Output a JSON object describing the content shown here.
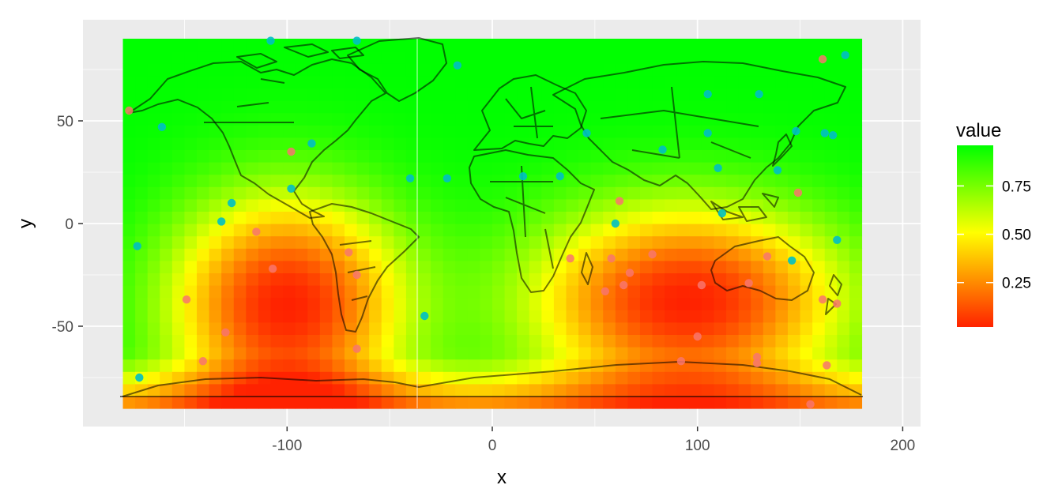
{
  "chart_data": {
    "type": "heatmap",
    "title": "",
    "xlabel": "x",
    "ylabel": "y",
    "xlim": [
      -180,
      180
    ],
    "ylim": [
      -90,
      90
    ],
    "x_ticks": [
      -100,
      0,
      100,
      200
    ],
    "x_tick_labels": [
      "-100",
      "0",
      "100",
      "200"
    ],
    "y_ticks": [
      -50,
      0,
      50
    ],
    "y_tick_labels": [
      "-50",
      "0",
      "50"
    ],
    "grid": true,
    "panel_background": "#ebebeb",
    "legend": {
      "title": "value",
      "placement": "right",
      "breaks": [
        0.25,
        0.5,
        0.75
      ],
      "break_labels": [
        "0.25",
        "0.50",
        "0.75"
      ],
      "range": [
        0.02,
        0.96
      ],
      "colors": [
        "#ff2200",
        "#ffff00",
        "#00ff00"
      ]
    },
    "heatmap": {
      "description_values": "interpolated value field over lon/lat",
      "low_centers": [
        {
          "x": -100,
          "y": -40,
          "value": 0.02
        },
        {
          "x": 95,
          "y": -38,
          "value": 0.02
        }
      ]
    },
    "overlay": "world country outlines",
    "points": {
      "high": [
        {
          "x": -108,
          "y": 89
        },
        {
          "x": -66,
          "y": 89
        },
        {
          "x": -17,
          "y": 77
        },
        {
          "x": 172,
          "y": 82
        },
        {
          "x": -161,
          "y": 47
        },
        {
          "x": -88,
          "y": 39
        },
        {
          "x": 105,
          "y": 63
        },
        {
          "x": 130,
          "y": 63
        },
        {
          "x": 46,
          "y": 44
        },
        {
          "x": 105,
          "y": 44
        },
        {
          "x": 148,
          "y": 45
        },
        {
          "x": 162,
          "y": 44
        },
        {
          "x": 166,
          "y": 43
        },
        {
          "x": 83,
          "y": 36
        },
        {
          "x": 110,
          "y": 27
        },
        {
          "x": 139,
          "y": 26
        },
        {
          "x": -40,
          "y": 22
        },
        {
          "x": -22,
          "y": 22
        },
        {
          "x": 15,
          "y": 23
        },
        {
          "x": 33,
          "y": 23
        },
        {
          "x": -98,
          "y": 17
        },
        {
          "x": -127,
          "y": 10
        },
        {
          "x": -132,
          "y": 1
        },
        {
          "x": 60,
          "y": 0
        },
        {
          "x": 112,
          "y": 5
        },
        {
          "x": -173,
          "y": -11
        },
        {
          "x": 168,
          "y": -8
        },
        {
          "x": 146,
          "y": -18
        },
        {
          "x": -33,
          "y": -45
        },
        {
          "x": -172,
          "y": -75
        }
      ],
      "low": [
        {
          "x": -177,
          "y": 55
        },
        {
          "x": -98,
          "y": 35
        },
        {
          "x": 161,
          "y": 80
        },
        {
          "x": 62,
          "y": 11
        },
        {
          "x": 149,
          "y": 15
        },
        {
          "x": -115,
          "y": -4
        },
        {
          "x": -107,
          "y": -22
        },
        {
          "x": -70,
          "y": -14
        },
        {
          "x": -66,
          "y": -25
        },
        {
          "x": -149,
          "y": -37
        },
        {
          "x": -130,
          "y": -53
        },
        {
          "x": -66,
          "y": -61
        },
        {
          "x": -141,
          "y": -67
        },
        {
          "x": 38,
          "y": -17
        },
        {
          "x": 58,
          "y": -17
        },
        {
          "x": 78,
          "y": -15
        },
        {
          "x": 55,
          "y": -33
        },
        {
          "x": 64,
          "y": -30
        },
        {
          "x": 67,
          "y": -24
        },
        {
          "x": 102,
          "y": -30
        },
        {
          "x": 125,
          "y": -29
        },
        {
          "x": 134,
          "y": -16
        },
        {
          "x": 161,
          "y": -37
        },
        {
          "x": 168,
          "y": -39
        },
        {
          "x": 100,
          "y": -55
        },
        {
          "x": 92,
          "y": -67
        },
        {
          "x": 129,
          "y": -65
        },
        {
          "x": 129,
          "y": -68
        },
        {
          "x": 163,
          "y": -69
        },
        {
          "x": 155,
          "y": -88
        }
      ]
    },
    "point_colors": {
      "high": "#00bfc4",
      "low": "#f8766d"
    }
  }
}
